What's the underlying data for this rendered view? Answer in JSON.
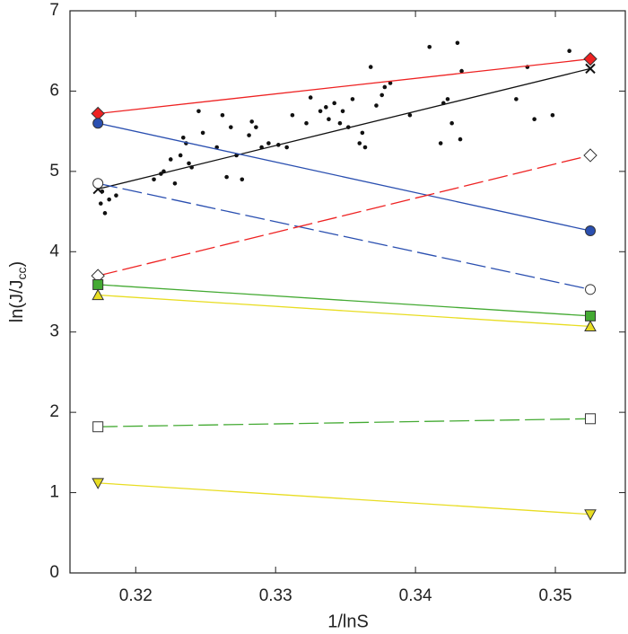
{
  "chart_data": {
    "type": "line",
    "xlabel": "1/lnS",
    "ylabel": [
      "ln(J/J",
      "cc",
      ")"
    ],
    "xlim": [
      0.3153,
      0.355
    ],
    "ylim": [
      0,
      7
    ],
    "xticks": [
      0.32,
      0.33,
      0.34,
      0.35
    ],
    "yticks": [
      0,
      1,
      2,
      3,
      4,
      5,
      6,
      7
    ],
    "x": [
      0.3173,
      0.3525
    ],
    "series": [
      {
        "color": "#ee2222",
        "dash": false,
        "marker": "diamond",
        "filled": true,
        "values": [
          5.72,
          6.4
        ]
      },
      {
        "color": "#111111",
        "dash": false,
        "marker": "cross",
        "filled": true,
        "values": [
          4.78,
          6.28
        ]
      },
      {
        "color": "#2a4fb0",
        "dash": false,
        "marker": "circle",
        "filled": true,
        "values": [
          5.6,
          4.26
        ]
      },
      {
        "color": "#2a4fb0",
        "dash": true,
        "marker": "circle",
        "filled": false,
        "values": [
          4.85,
          3.53
        ]
      },
      {
        "color": "#ee2222",
        "dash": true,
        "marker": "diamond",
        "filled": false,
        "values": [
          3.7,
          5.2
        ]
      },
      {
        "color": "#44aa33",
        "dash": false,
        "marker": "square",
        "filled": true,
        "values": [
          3.59,
          3.2
        ]
      },
      {
        "color": "#e8dd22",
        "dash": false,
        "marker": "triangle",
        "filled": true,
        "values": [
          3.46,
          3.07
        ]
      },
      {
        "color": "#44aa33",
        "dash": true,
        "marker": "square",
        "filled": false,
        "values": [
          1.82,
          1.92
        ]
      },
      {
        "color": "#e8dd22",
        "dash": false,
        "marker": "triangle-down",
        "filled": true,
        "values": [
          1.12,
          0.73
        ]
      }
    ],
    "scatter": {
      "color": "#111111",
      "x": [
        0.3175,
        0.3178,
        0.3181,
        0.3186,
        0.3176,
        0.3213,
        0.3218,
        0.322,
        0.3225,
        0.3228,
        0.3232,
        0.3234,
        0.3236,
        0.3238,
        0.324,
        0.3245,
        0.3248,
        0.3258,
        0.3262,
        0.3265,
        0.3268,
        0.3272,
        0.3276,
        0.3281,
        0.3283,
        0.3286,
        0.329,
        0.3295,
        0.3302,
        0.3308,
        0.3312,
        0.3322,
        0.3325,
        0.3332,
        0.3336,
        0.3338,
        0.3342,
        0.3346,
        0.3348,
        0.3352,
        0.3355,
        0.336,
        0.3362,
        0.3364,
        0.3368,
        0.3372,
        0.3376,
        0.3378,
        0.3382,
        0.3396,
        0.341,
        0.3418,
        0.342,
        0.3423,
        0.3426,
        0.343,
        0.3432,
        0.3433,
        0.3472,
        0.348,
        0.3485,
        0.3498,
        0.351
      ],
      "values": [
        4.6,
        4.48,
        4.65,
        4.7,
        4.75,
        4.9,
        4.97,
        5.0,
        5.15,
        4.85,
        5.2,
        5.42,
        5.35,
        5.1,
        5.05,
        5.75,
        5.48,
        5.3,
        5.7,
        4.93,
        5.55,
        5.2,
        4.9,
        5.45,
        5.62,
        5.55,
        5.3,
        5.35,
        5.33,
        5.3,
        5.7,
        5.6,
        5.92,
        5.75,
        5.8,
        5.65,
        5.85,
        5.6,
        5.75,
        5.55,
        5.9,
        5.35,
        5.48,
        5.3,
        6.3,
        5.82,
        5.95,
        6.05,
        6.1,
        5.7,
        6.55,
        5.35,
        5.85,
        5.9,
        5.6,
        6.6,
        5.4,
        6.25,
        5.9,
        6.3,
        5.65,
        5.7,
        6.5
      ]
    }
  }
}
